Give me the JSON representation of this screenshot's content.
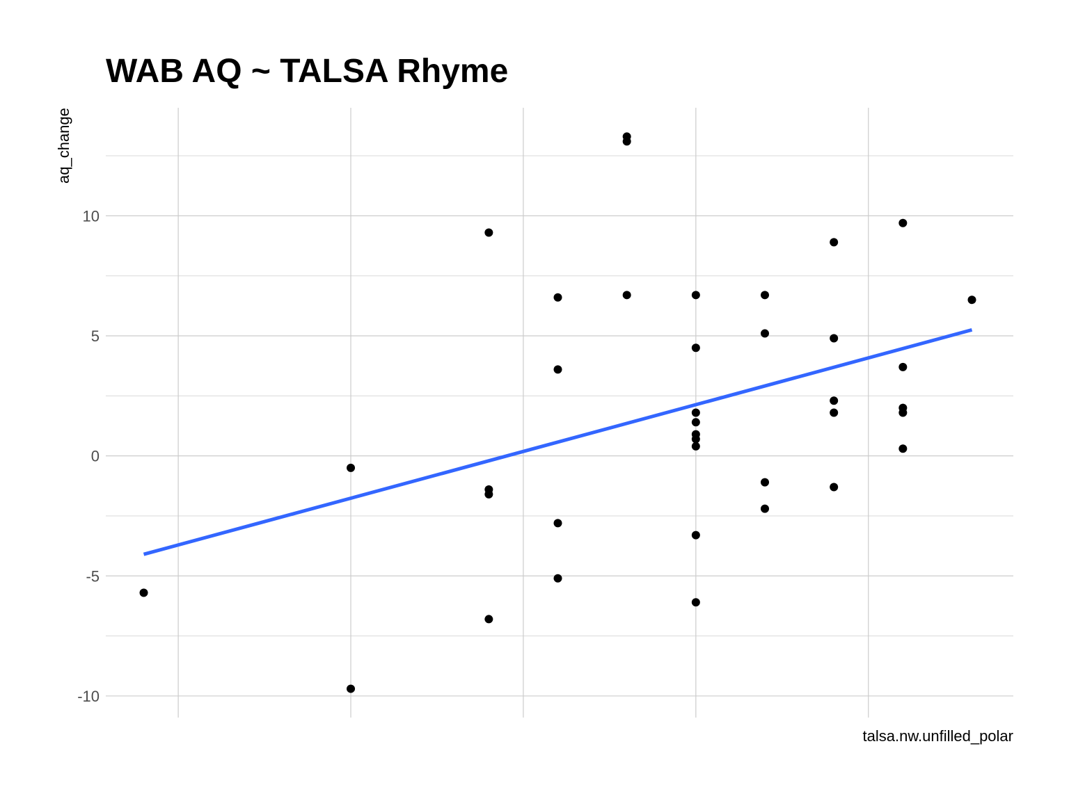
{
  "chart_data": {
    "type": "scatter",
    "title": "WAB AQ ~ TALSA Rhyme",
    "xlabel": "talsa.nw.unfilled_polar",
    "ylabel": "aq_change",
    "xlim": [
      -0.55,
      12.6
    ],
    "ylim": [
      -10.9,
      14.5
    ],
    "x_gridlines": [
      0.5,
      3,
      5.5,
      8,
      10.5
    ],
    "y_ticks": [
      -10,
      -5,
      0,
      5,
      10
    ],
    "y_tick_labels": [
      "-10",
      "-5",
      "0",
      "5",
      "10"
    ],
    "y_minor_gridlines": [
      -7.5,
      -2.5,
      2.5,
      7.5,
      12.5
    ],
    "grid": true,
    "legend": "none",
    "point_color": "#000000",
    "points": [
      {
        "x": 0,
        "y": -5.7
      },
      {
        "x": 3,
        "y": -0.5
      },
      {
        "x": 3,
        "y": -9.7
      },
      {
        "x": 5,
        "y": 9.3
      },
      {
        "x": 5,
        "y": -1.4
      },
      {
        "x": 5,
        "y": -1.6
      },
      {
        "x": 5,
        "y": -6.8
      },
      {
        "x": 6,
        "y": 6.6
      },
      {
        "x": 6,
        "y": 3.6
      },
      {
        "x": 6,
        "y": -2.8
      },
      {
        "x": 6,
        "y": -5.1
      },
      {
        "x": 7,
        "y": 13.3
      },
      {
        "x": 7,
        "y": 13.1
      },
      {
        "x": 7,
        "y": 6.7
      },
      {
        "x": 8,
        "y": 6.7
      },
      {
        "x": 8,
        "y": 4.5
      },
      {
        "x": 8,
        "y": 1.8
      },
      {
        "x": 8,
        "y": 1.4
      },
      {
        "x": 8,
        "y": 0.9
      },
      {
        "x": 8,
        "y": 0.7
      },
      {
        "x": 8,
        "y": 0.4
      },
      {
        "x": 8,
        "y": -3.3
      },
      {
        "x": 8,
        "y": -6.1
      },
      {
        "x": 9,
        "y": 6.7
      },
      {
        "x": 9,
        "y": 5.1
      },
      {
        "x": 9,
        "y": -1.1
      },
      {
        "x": 9,
        "y": -2.2
      },
      {
        "x": 10,
        "y": 8.9
      },
      {
        "x": 10,
        "y": 4.9
      },
      {
        "x": 10,
        "y": 2.3
      },
      {
        "x": 10,
        "y": 1.8
      },
      {
        "x": 10,
        "y": -1.3
      },
      {
        "x": 11,
        "y": 9.7
      },
      {
        "x": 11,
        "y": 3.7
      },
      {
        "x": 11,
        "y": 2.0
      },
      {
        "x": 11,
        "y": 1.8
      },
      {
        "x": 11,
        "y": 0.3
      },
      {
        "x": 12,
        "y": 6.5
      }
    ],
    "trend_line": {
      "color": "#3366FF",
      "from": {
        "x": 0,
        "y": -4.1
      },
      "to": {
        "x": 12,
        "y": 5.25
      }
    }
  }
}
